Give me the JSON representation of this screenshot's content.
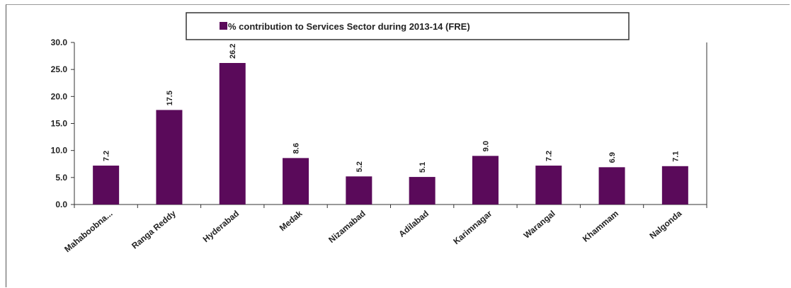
{
  "chart_data": {
    "type": "bar",
    "title": "",
    "xlabel": "",
    "ylabel": "",
    "ylim": [
      0,
      30
    ],
    "yticks": [
      "0.0",
      "5.0",
      "10.0",
      "15.0",
      "20.0",
      "25.0",
      "30.0"
    ],
    "categories": [
      "Mahaboobna...",
      "Ranga Reddy",
      "Hyderabad",
      "Medak",
      "Nizamabad",
      "Adilabad",
      "Karimnagar",
      "Warangal",
      "Khammam",
      "Nalgonda"
    ],
    "series": [
      {
        "name": "% contribution to Services Sector during 2013-14 (FRE)",
        "values": [
          7.2,
          17.5,
          26.2,
          8.6,
          5.2,
          5.1,
          9.0,
          7.2,
          6.9,
          7.1
        ],
        "labels": [
          "7.2",
          "17.5",
          "26.2",
          "8.6",
          "5.2",
          "5.1",
          "9.0",
          "7.2",
          "6.9",
          "7.1"
        ]
      }
    ],
    "colors": {
      "bar": "#5a0a5a"
    },
    "legend_position": "top",
    "grid": false
  }
}
